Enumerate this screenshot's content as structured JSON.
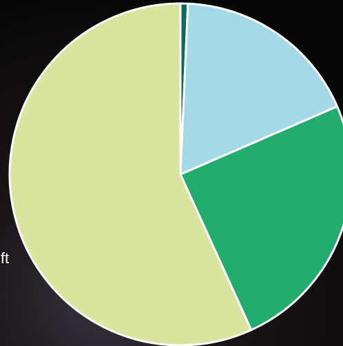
{
  "chart_data": {
    "type": "pie",
    "annotation": "ift",
    "values": [
      0.7,
      17.8,
      24.7,
      56.8
    ],
    "colors": [
      "#0e6b5b",
      "#a6d9e7",
      "#22ad6e",
      "#d9e59e"
    ],
    "start_angle": 0,
    "direction": "clockwise"
  }
}
